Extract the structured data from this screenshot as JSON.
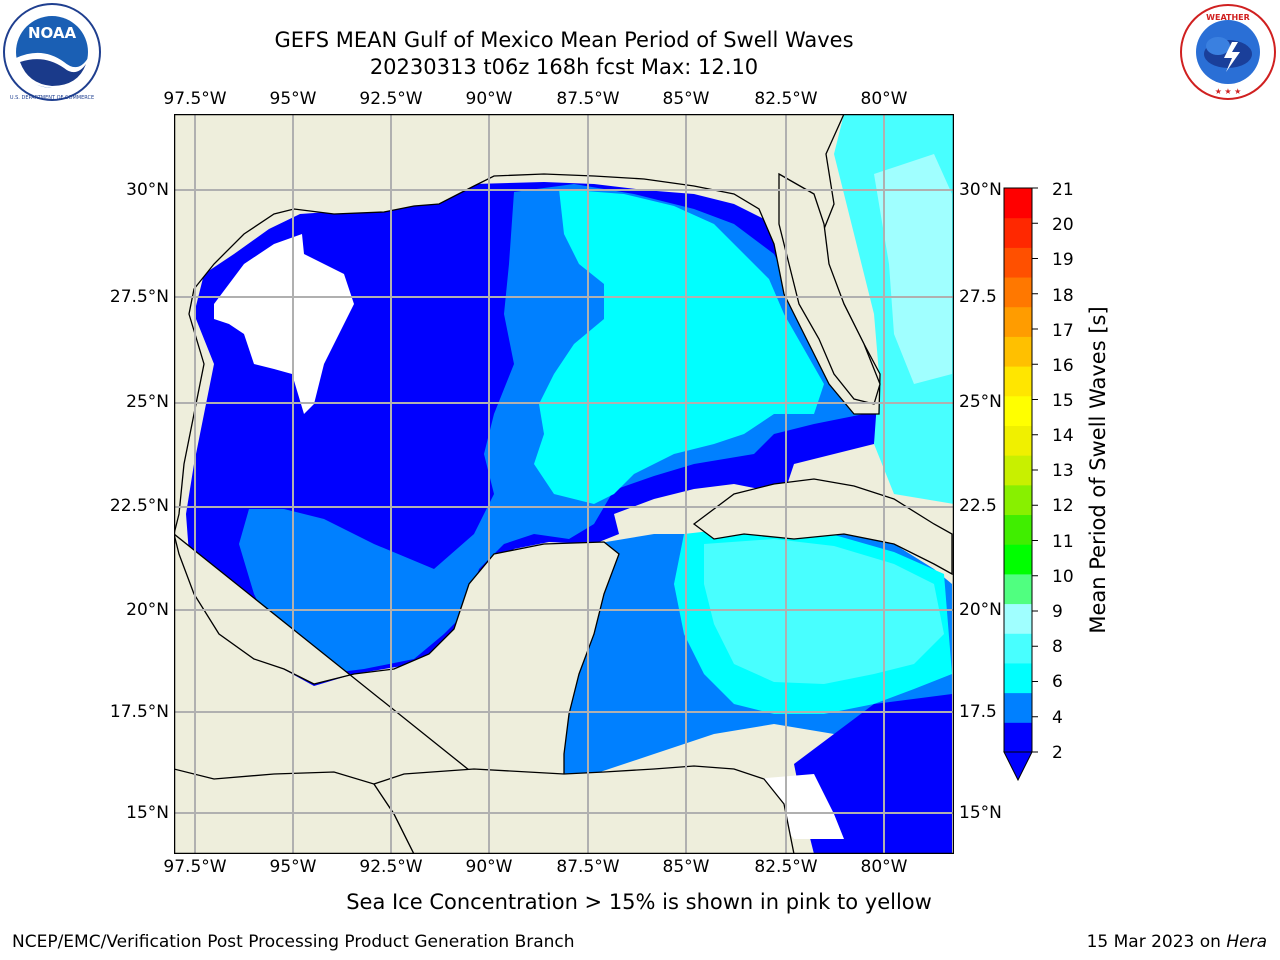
{
  "header": {
    "title_line1": "GEFS MEAN Gulf of Mexico Mean Period of Swell Waves",
    "title_line2": "20230313 t06z 168h fcst   Max: 12.10"
  },
  "logos": {
    "noaa_text": "NOAA",
    "noaa_ring_text": "NATIONAL OCEANIC AND ATMOSPHERIC ADMINISTRATION · U.S. DEPARTMENT OF COMMERCE",
    "nws_ring_text": "NATIONAL WEATHER SERVICE"
  },
  "map": {
    "lon_labels": [
      "97.5°W",
      "95°W",
      "92.5°W",
      "90°W",
      "87.5°W",
      "85°W",
      "82.5°W",
      "80°W"
    ],
    "lat_labels_left": [
      "30°N",
      "27.5°N",
      "25°N",
      "22.5°N",
      "20°N",
      "17.5°N",
      "15°N"
    ],
    "lat_labels_right": [
      "30°N",
      "27.5",
      "25°N",
      "22.5",
      "20°N",
      "17.5",
      "15°N"
    ],
    "lon_range": [
      -98.0,
      -78.1
    ],
    "lat_range": [
      14.0,
      31.9
    ],
    "land_color": "#eeeedc",
    "ocean_no_data_color": "#ffffff"
  },
  "colorbar": {
    "label": "Mean Period of Swell Waves [s]",
    "ticks": [
      "21",
      "20",
      "19",
      "18",
      "17",
      "16",
      "15",
      "14",
      "13",
      "12",
      "11",
      "10",
      "9",
      "8",
      "6",
      "4",
      "2"
    ],
    "colors": [
      "#0000ff",
      "#0080ff",
      "#00ffff",
      "#48ffff",
      "#a0ffff",
      "#50ff80",
      "#00ff00",
      "#40ee00",
      "#88f000",
      "#c8f000",
      "#f0f000",
      "#ffff00",
      "#ffe600",
      "#ffc000",
      "#ff9c00",
      "#ff7800",
      "#ff5000",
      "#ff2800",
      "#ff0000"
    ]
  },
  "note": "Sea Ice Concentration > 15% is shown in pink to yellow",
  "footer": {
    "left": "NCEP/EMC/Verification Post Processing Product Generation Branch",
    "right_date": "15 Mar 2023 on ",
    "right_host": "Hera"
  }
}
